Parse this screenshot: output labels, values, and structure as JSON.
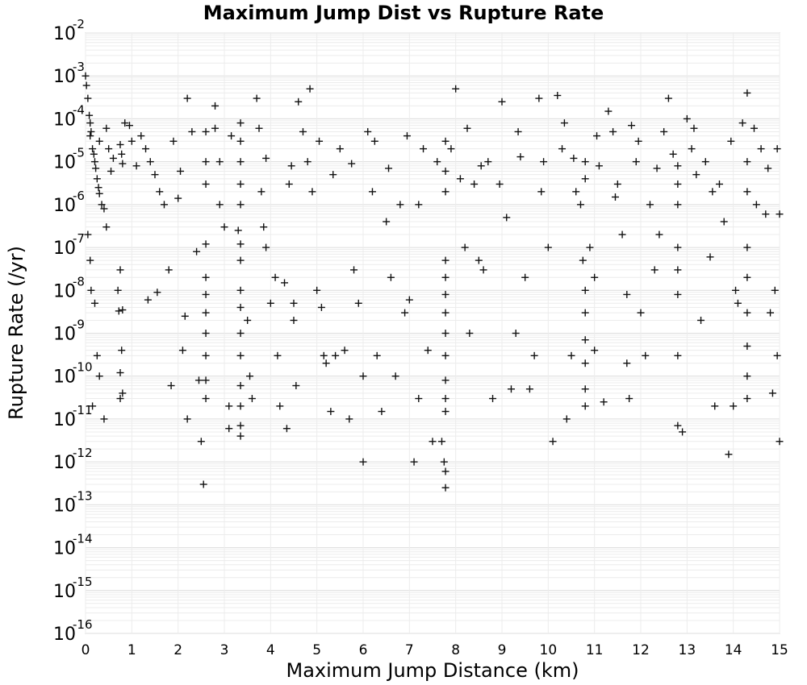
{
  "chart_data": {
    "type": "scatter",
    "title": "Maximum Jump Dist vs Rupture Rate",
    "xlabel": "Maximum Jump Distance (km)",
    "ylabel": "Rupture Rate (/yr)",
    "xlim": [
      0,
      15
    ],
    "ylim": [
      1e-16,
      0.01
    ],
    "yscale": "log",
    "grid": true,
    "marker": "+",
    "marker_color": "#111111",
    "x_ticks": [
      "0",
      "1",
      "2",
      "3",
      "4",
      "5",
      "6",
      "7",
      "8",
      "9",
      "10",
      "11",
      "12",
      "13",
      "14",
      "15"
    ],
    "y_ticks": [
      {
        "base": "10",
        "exp": "-2"
      },
      {
        "base": "10",
        "exp": "-3"
      },
      {
        "base": "10",
        "exp": "-4"
      },
      {
        "base": "10",
        "exp": "-5"
      },
      {
        "base": "10",
        "exp": "-6"
      },
      {
        "base": "10",
        "exp": "-7"
      },
      {
        "base": "10",
        "exp": "-8"
      },
      {
        "base": "10",
        "exp": "-9"
      },
      {
        "base": "10",
        "exp": "-10"
      },
      {
        "base": "10",
        "exp": "-11"
      },
      {
        "base": "10",
        "exp": "-12"
      },
      {
        "base": "10",
        "exp": "-13"
      },
      {
        "base": "10",
        "exp": "-14"
      },
      {
        "base": "10",
        "exp": "-15"
      },
      {
        "base": "10",
        "exp": "-16"
      }
    ],
    "points": [
      [
        0.0,
        0.001
      ],
      [
        0.02,
        0.0006
      ],
      [
        0.05,
        0.0003
      ],
      [
        0.08,
        0.00012
      ],
      [
        0.1,
        8e-05
      ],
      [
        0.12,
        5e-05
      ],
      [
        0.15,
        2e-05
      ],
      [
        0.18,
        1.5e-05
      ],
      [
        0.2,
        1e-05
      ],
      [
        0.22,
        7e-06
      ],
      [
        0.25,
        4e-06
      ],
      [
        0.28,
        2.5e-06
      ],
      [
        0.3,
        1.8e-06
      ],
      [
        0.35,
        1e-06
      ],
      [
        0.4,
        8e-07
      ],
      [
        0.45,
        3e-07
      ],
      [
        0.05,
        2e-07
      ],
      [
        0.1,
        5e-08
      ],
      [
        0.12,
        1e-08
      ],
      [
        0.2,
        5e-09
      ],
      [
        0.25,
        3e-10
      ],
      [
        0.3,
        1e-10
      ],
      [
        0.15,
        2e-11
      ],
      [
        0.4,
        1e-11
      ],
      [
        0.1,
        4e-05
      ],
      [
        0.3,
        3e-05
      ],
      [
        0.45,
        6e-05
      ],
      [
        0.5,
        2e-05
      ],
      [
        0.6,
        1.2e-05
      ],
      [
        0.75,
        2.5e-05
      ],
      [
        0.78,
        1.5e-05
      ],
      [
        0.8,
        9e-06
      ],
      [
        0.85,
        8e-05
      ],
      [
        0.95,
        7e-05
      ],
      [
        0.75,
        3e-08
      ],
      [
        0.7,
        1e-08
      ],
      [
        0.72,
        3.3e-09
      ],
      [
        0.8,
        3.5e-09
      ],
      [
        0.78,
        4e-10
      ],
      [
        0.75,
        1.2e-10
      ],
      [
        0.8,
        4e-11
      ],
      [
        0.75,
        3e-11
      ],
      [
        1.2,
        4e-05
      ],
      [
        1.3,
        2e-05
      ],
      [
        1.4,
        1e-05
      ],
      [
        1.5,
        5e-06
      ],
      [
        1.6,
        2e-06
      ],
      [
        1.7,
        1e-06
      ],
      [
        1.35,
        6e-09
      ],
      [
        1.55,
        9e-09
      ],
      [
        1.8,
        3e-08
      ],
      [
        1.85,
        6e-11
      ],
      [
        2.0,
        1.4e-06
      ],
      [
        2.1,
        4e-10
      ],
      [
        2.15,
        2.5e-09
      ],
      [
        2.2,
        1e-11
      ],
      [
        2.2,
        0.0003
      ],
      [
        2.3,
        5e-05
      ],
      [
        2.4,
        8e-08
      ],
      [
        2.45,
        8e-11
      ],
      [
        2.5,
        3e-12
      ],
      [
        2.55,
        3e-13
      ],
      [
        2.6,
        1.2e-07
      ],
      [
        2.6,
        2e-08
      ],
      [
        2.6,
        8e-09
      ],
      [
        2.6,
        3e-09
      ],
      [
        2.6,
        1e-09
      ],
      [
        2.6,
        3e-10
      ],
      [
        2.6,
        8e-11
      ],
      [
        2.6,
        3e-11
      ],
      [
        2.6,
        5e-05
      ],
      [
        2.6,
        1e-05
      ],
      [
        2.6,
        3e-06
      ],
      [
        2.8,
        0.0002
      ],
      [
        2.8,
        6e-05
      ],
      [
        2.9,
        1e-05
      ],
      [
        2.9,
        1e-06
      ],
      [
        3.0,
        3e-07
      ],
      [
        3.1,
        6e-12
      ],
      [
        3.1,
        2e-11
      ],
      [
        3.3,
        2.5e-07
      ],
      [
        3.35,
        1.2e-07
      ],
      [
        3.35,
        5e-08
      ],
      [
        3.35,
        1e-08
      ],
      [
        3.35,
        4e-09
      ],
      [
        3.35,
        1e-09
      ],
      [
        3.35,
        3e-10
      ],
      [
        3.35,
        6e-11
      ],
      [
        3.35,
        2e-11
      ],
      [
        3.35,
        7e-12
      ],
      [
        3.35,
        4e-12
      ],
      [
        3.35,
        8e-05
      ],
      [
        3.35,
        3e-05
      ],
      [
        3.35,
        1e-05
      ],
      [
        3.35,
        3e-06
      ],
      [
        3.35,
        1e-06
      ],
      [
        3.5,
        2e-09
      ],
      [
        3.55,
        1e-10
      ],
      [
        3.6,
        3e-11
      ],
      [
        3.7,
        0.0003
      ],
      [
        3.75,
        6e-05
      ],
      [
        3.8,
        2e-06
      ],
      [
        3.85,
        3e-07
      ],
      [
        3.9,
        1e-07
      ],
      [
        4.0,
        5e-09
      ],
      [
        4.1,
        2e-08
      ],
      [
        4.15,
        3e-10
      ],
      [
        4.2,
        2e-11
      ],
      [
        4.3,
        1.5e-08
      ],
      [
        4.35,
        6e-12
      ],
      [
        4.4,
        3e-06
      ],
      [
        4.5,
        2e-09
      ],
      [
        4.5,
        5e-09
      ],
      [
        4.55,
        6e-11
      ],
      [
        4.6,
        0.00025
      ],
      [
        4.7,
        5e-05
      ],
      [
        4.8,
        1e-05
      ],
      [
        4.85,
        0.0005
      ],
      [
        4.9,
        2e-06
      ],
      [
        5.0,
        1e-08
      ],
      [
        5.1,
        4e-09
      ],
      [
        5.15,
        3e-10
      ],
      [
        5.2,
        2e-10
      ],
      [
        5.3,
        1.5e-11
      ],
      [
        5.4,
        3e-10
      ],
      [
        5.5,
        2e-05
      ],
      [
        5.6,
        4e-10
      ],
      [
        5.7,
        1e-11
      ],
      [
        5.8,
        3e-08
      ],
      [
        5.9,
        5e-09
      ],
      [
        6.0,
        1e-10
      ],
      [
        6.0,
        1e-12
      ],
      [
        6.1,
        5e-05
      ],
      [
        6.2,
        2e-06
      ],
      [
        6.3,
        3e-10
      ],
      [
        6.4,
        1.5e-11
      ],
      [
        6.5,
        4e-07
      ],
      [
        6.6,
        2e-08
      ],
      [
        6.7,
        1e-10
      ],
      [
        6.8,
        1e-06
      ],
      [
        6.9,
        3e-09
      ],
      [
        7.0,
        6e-09
      ],
      [
        7.1,
        1e-12
      ],
      [
        7.2,
        3e-11
      ],
      [
        7.3,
        2e-05
      ],
      [
        7.4,
        4e-10
      ],
      [
        7.5,
        3e-12
      ],
      [
        7.6,
        1e-05
      ],
      [
        7.7,
        3e-12
      ],
      [
        7.75,
        1e-12
      ],
      [
        7.78,
        3e-05
      ],
      [
        7.78,
        6e-06
      ],
      [
        7.78,
        2e-06
      ],
      [
        7.78,
        5e-08
      ],
      [
        7.78,
        2e-08
      ],
      [
        7.78,
        8e-09
      ],
      [
        7.78,
        3e-09
      ],
      [
        7.78,
        1e-09
      ],
      [
        7.78,
        3e-10
      ],
      [
        7.78,
        8e-11
      ],
      [
        7.78,
        3e-11
      ],
      [
        7.78,
        1.5e-11
      ],
      [
        7.78,
        6e-13
      ],
      [
        7.78,
        2.5e-13
      ],
      [
        7.9,
        2e-05
      ],
      [
        8.0,
        0.0005
      ],
      [
        8.1,
        4e-06
      ],
      [
        8.2,
        1e-07
      ],
      [
        8.3,
        1e-09
      ],
      [
        8.4,
        3e-06
      ],
      [
        8.5,
        5e-08
      ],
      [
        8.6,
        3e-08
      ],
      [
        8.7,
        1e-05
      ],
      [
        8.8,
        3e-11
      ],
      [
        9.0,
        0.00025
      ],
      [
        9.1,
        5e-07
      ],
      [
        9.2,
        5e-11
      ],
      [
        9.3,
        1e-09
      ],
      [
        9.4,
        1.3e-05
      ],
      [
        9.5,
        2e-08
      ],
      [
        9.6,
        5e-11
      ],
      [
        9.7,
        3e-10
      ],
      [
        9.8,
        0.0003
      ],
      [
        9.9,
        1e-05
      ],
      [
        10.0,
        1e-07
      ],
      [
        10.1,
        3e-12
      ],
      [
        10.2,
        0.00035
      ],
      [
        10.3,
        2e-05
      ],
      [
        10.4,
        1e-11
      ],
      [
        10.5,
        3e-10
      ],
      [
        10.6,
        2e-06
      ],
      [
        10.7,
        1e-06
      ],
      [
        10.75,
        5e-08
      ],
      [
        10.8,
        1e-08
      ],
      [
        10.8,
        3e-09
      ],
      [
        10.8,
        7e-10
      ],
      [
        10.8,
        2e-10
      ],
      [
        10.8,
        5e-11
      ],
      [
        10.8,
        2e-11
      ],
      [
        10.8,
        1e-05
      ],
      [
        10.8,
        4e-06
      ],
      [
        10.9,
        1e-07
      ],
      [
        11.0,
        2e-08
      ],
      [
        11.0,
        4e-10
      ],
      [
        11.1,
        8e-06
      ],
      [
        11.2,
        2.5e-11
      ],
      [
        11.3,
        0.00015
      ],
      [
        11.4,
        5e-05
      ],
      [
        11.5,
        3e-06
      ],
      [
        11.6,
        2e-07
      ],
      [
        11.7,
        8e-09
      ],
      [
        11.7,
        2e-10
      ],
      [
        11.75,
        3e-11
      ],
      [
        11.8,
        7e-05
      ],
      [
        11.9,
        1e-05
      ],
      [
        12.0,
        3e-09
      ],
      [
        12.1,
        3e-10
      ],
      [
        12.2,
        1e-06
      ],
      [
        12.3,
        3e-08
      ],
      [
        12.4,
        2e-07
      ],
      [
        12.5,
        5e-05
      ],
      [
        12.6,
        0.0003
      ],
      [
        12.7,
        1.5e-05
      ],
      [
        12.8,
        8e-06
      ],
      [
        12.8,
        3e-06
      ],
      [
        12.8,
        1e-06
      ],
      [
        12.8,
        1e-07
      ],
      [
        12.8,
        3e-08
      ],
      [
        12.8,
        8e-09
      ],
      [
        12.8,
        3e-10
      ],
      [
        12.8,
        7e-12
      ],
      [
        12.9,
        5e-12
      ],
      [
        13.0,
        0.0001
      ],
      [
        13.1,
        2e-05
      ],
      [
        13.2,
        5e-06
      ],
      [
        13.3,
        2e-09
      ],
      [
        13.4,
        1e-05
      ],
      [
        13.5,
        6e-08
      ],
      [
        13.6,
        2e-11
      ],
      [
        13.7,
        3e-06
      ],
      [
        13.8,
        4e-07
      ],
      [
        13.9,
        1.5e-12
      ],
      [
        14.0,
        2e-11
      ],
      [
        14.05,
        1e-08
      ],
      [
        14.1,
        5e-09
      ],
      [
        14.2,
        8e-05
      ],
      [
        14.3,
        0.0004
      ],
      [
        14.3,
        1e-05
      ],
      [
        14.3,
        2e-06
      ],
      [
        14.3,
        1e-07
      ],
      [
        14.3,
        2e-08
      ],
      [
        14.3,
        3e-09
      ],
      [
        14.3,
        5e-10
      ],
      [
        14.3,
        1e-10
      ],
      [
        14.3,
        3e-11
      ],
      [
        14.5,
        1e-06
      ],
      [
        14.6,
        2e-05
      ],
      [
        14.7,
        6e-07
      ],
      [
        14.8,
        3e-09
      ],
      [
        14.85,
        4e-11
      ],
      [
        14.9,
        1e-08
      ],
      [
        14.95,
        3e-10
      ],
      [
        15.0,
        3e-12
      ],
      [
        15.0,
        6e-07
      ],
      [
        1.0,
        3e-05
      ],
      [
        1.1,
        8e-06
      ],
      [
        1.9,
        3e-05
      ],
      [
        2.05,
        6e-06
      ],
      [
        3.15,
        4e-05
      ],
      [
        3.9,
        1.2e-05
      ],
      [
        4.45,
        8e-06
      ],
      [
        5.05,
        3e-05
      ],
      [
        5.35,
        5e-06
      ],
      [
        5.75,
        9e-06
      ],
      [
        6.25,
        3e-05
      ],
      [
        6.55,
        7e-06
      ],
      [
        6.95,
        4e-05
      ],
      [
        7.2,
        1e-06
      ],
      [
        8.25,
        6e-05
      ],
      [
        8.55,
        8e-06
      ],
      [
        8.95,
        3e-06
      ],
      [
        9.35,
        5e-05
      ],
      [
        9.85,
        2e-06
      ],
      [
        10.35,
        8e-05
      ],
      [
        10.55,
        1.2e-05
      ],
      [
        11.05,
        4e-05
      ],
      [
        11.45,
        1.5e-06
      ],
      [
        11.95,
        3e-05
      ],
      [
        12.35,
        7e-06
      ],
      [
        13.15,
        6e-05
      ],
      [
        13.55,
        2e-06
      ],
      [
        13.95,
        3e-05
      ],
      [
        14.45,
        6e-05
      ],
      [
        14.75,
        7e-06
      ],
      [
        14.95,
        2e-05
      ],
      [
        0.55,
        6e-06
      ]
    ]
  }
}
